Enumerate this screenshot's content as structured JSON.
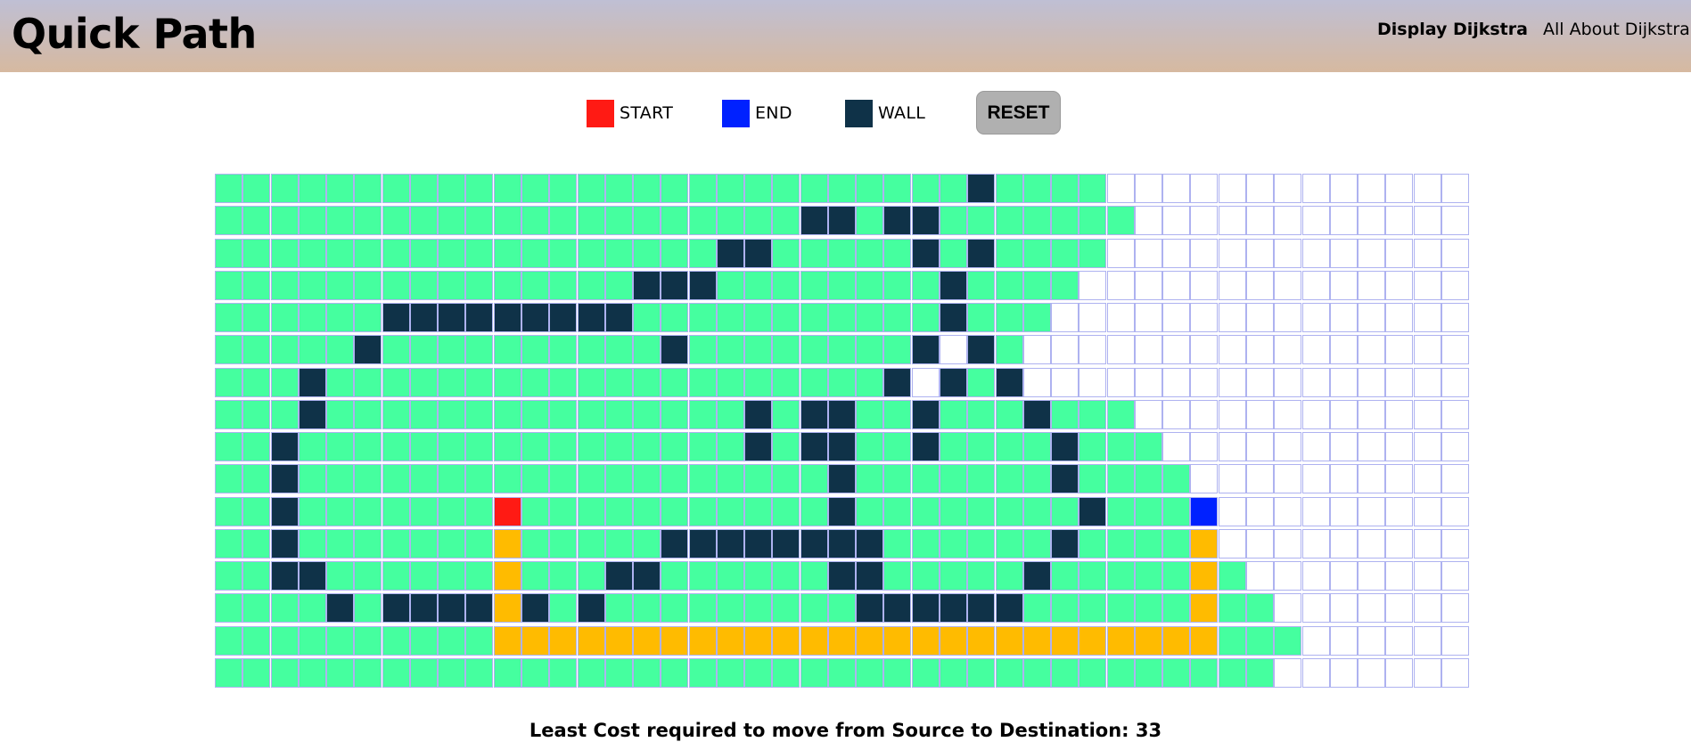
{
  "navbar": {
    "brand": "Quick Path",
    "links": [
      "Display Dijkstra",
      "All About Dijkstra"
    ]
  },
  "legend": {
    "start": {
      "label": "START",
      "color": "#ff1a14"
    },
    "end": {
      "label": "END",
      "color": "#0021ff"
    },
    "wall": {
      "label": "WALL",
      "color": "#0f3248"
    },
    "reset_label": "RESET"
  },
  "grid": {
    "rows": 16,
    "cols": 45,
    "colors": {
      "visited": "#45ff9f",
      "unvisited": "#ffffff",
      "wall": "#0f3248",
      "path": "#ffbb00"
    },
    "start": [
      10,
      10
    ],
    "end": [
      10,
      35
    ],
    "visited_count_per_row": [
      32,
      33,
      32,
      31,
      30,
      29,
      29,
      33,
      34,
      35,
      35,
      35,
      37,
      38,
      39,
      38
    ],
    "unvisited_inside": [
      [
        5,
        26
      ],
      [
        6,
        25
      ]
    ],
    "walls": [
      [
        0,
        27
      ],
      [
        1,
        21
      ],
      [
        1,
        22
      ],
      [
        1,
        24
      ],
      [
        1,
        25
      ],
      [
        2,
        18
      ],
      [
        2,
        19
      ],
      [
        2,
        25
      ],
      [
        2,
        27
      ],
      [
        3,
        15
      ],
      [
        3,
        16
      ],
      [
        3,
        17
      ],
      [
        3,
        26
      ],
      [
        4,
        6
      ],
      [
        4,
        7
      ],
      [
        4,
        8
      ],
      [
        4,
        9
      ],
      [
        4,
        10
      ],
      [
        4,
        11
      ],
      [
        4,
        12
      ],
      [
        4,
        13
      ],
      [
        4,
        14
      ],
      [
        4,
        26
      ],
      [
        5,
        5
      ],
      [
        5,
        16
      ],
      [
        5,
        25
      ],
      [
        5,
        27
      ],
      [
        6,
        3
      ],
      [
        6,
        24
      ],
      [
        6,
        26
      ],
      [
        6,
        28
      ],
      [
        7,
        3
      ],
      [
        7,
        19
      ],
      [
        7,
        21
      ],
      [
        7,
        22
      ],
      [
        7,
        25
      ],
      [
        7,
        29
      ],
      [
        8,
        2
      ],
      [
        8,
        19
      ],
      [
        8,
        21
      ],
      [
        8,
        22
      ],
      [
        8,
        25
      ],
      [
        8,
        30
      ],
      [
        9,
        2
      ],
      [
        9,
        22
      ],
      [
        9,
        30
      ],
      [
        10,
        2
      ],
      [
        10,
        22
      ],
      [
        10,
        31
      ],
      [
        11,
        2
      ],
      [
        11,
        16
      ],
      [
        11,
        17
      ],
      [
        11,
        18
      ],
      [
        11,
        19
      ],
      [
        11,
        20
      ],
      [
        11,
        21
      ],
      [
        11,
        22
      ],
      [
        11,
        23
      ],
      [
        11,
        30
      ],
      [
        12,
        2
      ],
      [
        12,
        3
      ],
      [
        12,
        14
      ],
      [
        12,
        15
      ],
      [
        12,
        22
      ],
      [
        12,
        23
      ],
      [
        12,
        29
      ],
      [
        13,
        4
      ],
      [
        13,
        6
      ],
      [
        13,
        7
      ],
      [
        13,
        8
      ],
      [
        13,
        9
      ],
      [
        13,
        11
      ],
      [
        13,
        13
      ],
      [
        13,
        23
      ],
      [
        13,
        24
      ],
      [
        13,
        25
      ],
      [
        13,
        26
      ],
      [
        13,
        27
      ],
      [
        13,
        28
      ]
    ],
    "path": [
      [
        11,
        10
      ],
      [
        12,
        10
      ],
      [
        13,
        10
      ],
      [
        14,
        10
      ],
      [
        14,
        11
      ],
      [
        14,
        12
      ],
      [
        14,
        13
      ],
      [
        14,
        14
      ],
      [
        14,
        15
      ],
      [
        14,
        16
      ],
      [
        14,
        17
      ],
      [
        14,
        18
      ],
      [
        14,
        19
      ],
      [
        14,
        20
      ],
      [
        14,
        21
      ],
      [
        14,
        22
      ],
      [
        14,
        23
      ],
      [
        14,
        24
      ],
      [
        14,
        25
      ],
      [
        14,
        26
      ],
      [
        14,
        27
      ],
      [
        14,
        28
      ],
      [
        14,
        29
      ],
      [
        14,
        30
      ],
      [
        14,
        31
      ],
      [
        14,
        32
      ],
      [
        14,
        33
      ],
      [
        14,
        34
      ],
      [
        14,
        35
      ],
      [
        13,
        35
      ],
      [
        12,
        35
      ],
      [
        11,
        35
      ]
    ]
  },
  "result": {
    "text": "Least Cost required to move from Source to Destination: 33"
  }
}
